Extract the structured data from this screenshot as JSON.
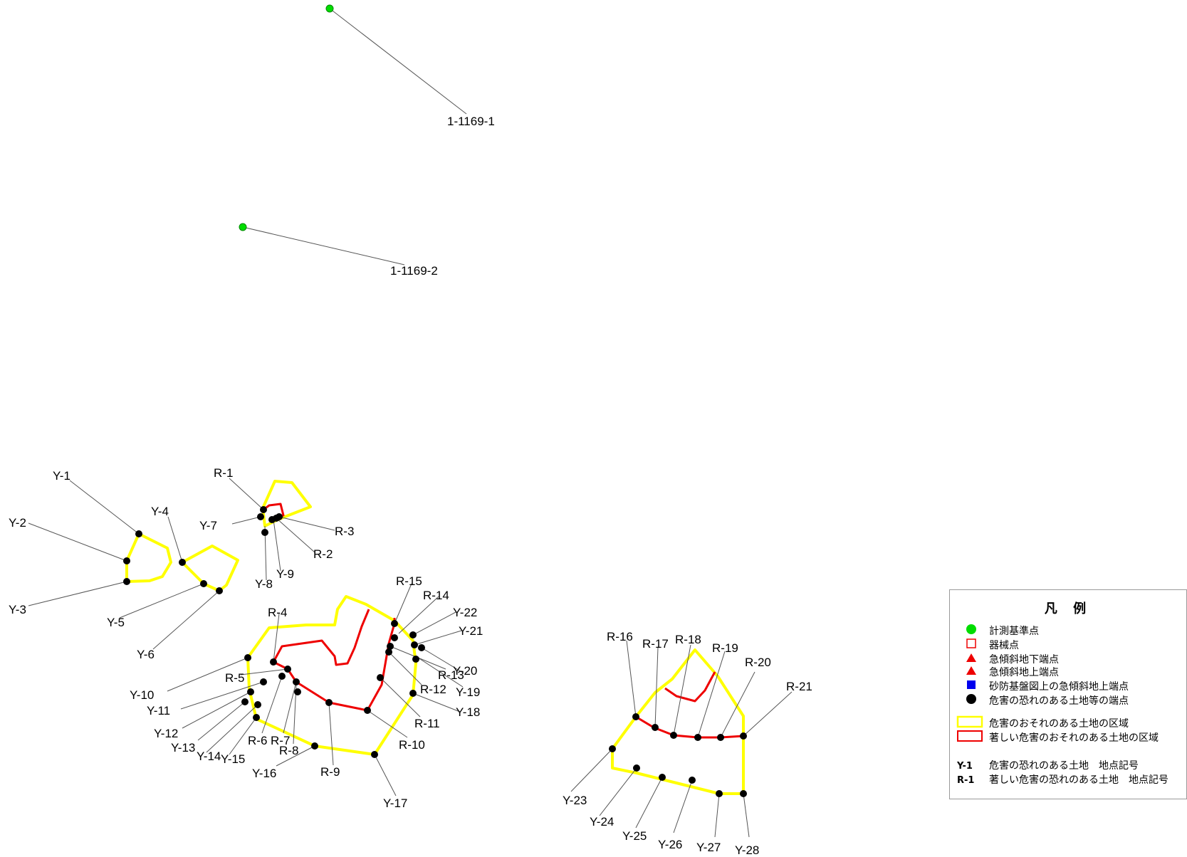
{
  "reference_points": [
    {
      "label": "1-1169-1",
      "color": "#00dd00"
    },
    {
      "label": "1-1169-2",
      "color": "#00dd00"
    }
  ],
  "colors": {
    "yellow_zone": "#ffff00",
    "red_zone": "#ee0000",
    "point": "#000000",
    "reference_point": "#00dd00"
  },
  "point_labels": {
    "Y-1": "Y-1",
    "Y-2": "Y-2",
    "Y-3": "Y-3",
    "Y-4": "Y-4",
    "Y-5": "Y-5",
    "Y-6": "Y-6",
    "Y-7": "Y-7",
    "Y-8": "Y-8",
    "Y-9": "Y-9",
    "Y-10": "Y-10",
    "Y-11": "Y-11",
    "Y-12": "Y-12",
    "Y-13": "Y-13",
    "Y-14": "Y-14",
    "Y-15": "Y-15",
    "Y-16": "Y-16",
    "Y-17": "Y-17",
    "Y-18": "Y-18",
    "Y-19": "Y-19",
    "Y-20": "Y-20",
    "Y-21": "Y-21",
    "Y-22": "Y-22",
    "Y-23": "Y-23",
    "Y-24": "Y-24",
    "Y-25": "Y-25",
    "Y-26": "Y-26",
    "Y-27": "Y-27",
    "Y-28": "Y-28",
    "R-1": "R-1",
    "R-2": "R-2",
    "R-3": "R-3",
    "R-4": "R-4",
    "R-5": "R-5",
    "R-6": "R-6",
    "R-7": "R-7",
    "R-8": "R-8",
    "R-9": "R-9",
    "R-10": "R-10",
    "R-11": "R-11",
    "R-12": "R-12",
    "R-13": "R-13",
    "R-14": "R-14",
    "R-15": "R-15",
    "R-16": "R-16",
    "R-17": "R-17",
    "R-18": "R-18",
    "R-19": "R-19",
    "R-20": "R-20",
    "R-21": "R-21"
  },
  "legend": {
    "title": "凡 例",
    "items": [
      {
        "symbol": "green-circle",
        "label": "計測基準点"
      },
      {
        "symbol": "red-square-outline",
        "label": "器械点"
      },
      {
        "symbol": "red-triangle",
        "label": "急傾斜地下端点"
      },
      {
        "symbol": "red-triangle",
        "label": "急傾斜地上端点"
      },
      {
        "symbol": "blue-square",
        "label": "砂防基盤図上の急傾斜地上端点"
      },
      {
        "symbol": "black-circle",
        "label": "危害の恐れのある土地等の端点"
      },
      {
        "symbol": "yellow-rect-outline",
        "label": "危害のおそれのある土地の区域"
      },
      {
        "symbol": "red-rect-outline",
        "label": "著しい危害のおそれのある土地の区域"
      }
    ],
    "codes": [
      {
        "code": "Y-1",
        "desc": "危害の恐れのある土地　地点記号"
      },
      {
        "code": "R-1",
        "desc": "著しい危害の恐れのある土地　地点記号"
      }
    ]
  }
}
